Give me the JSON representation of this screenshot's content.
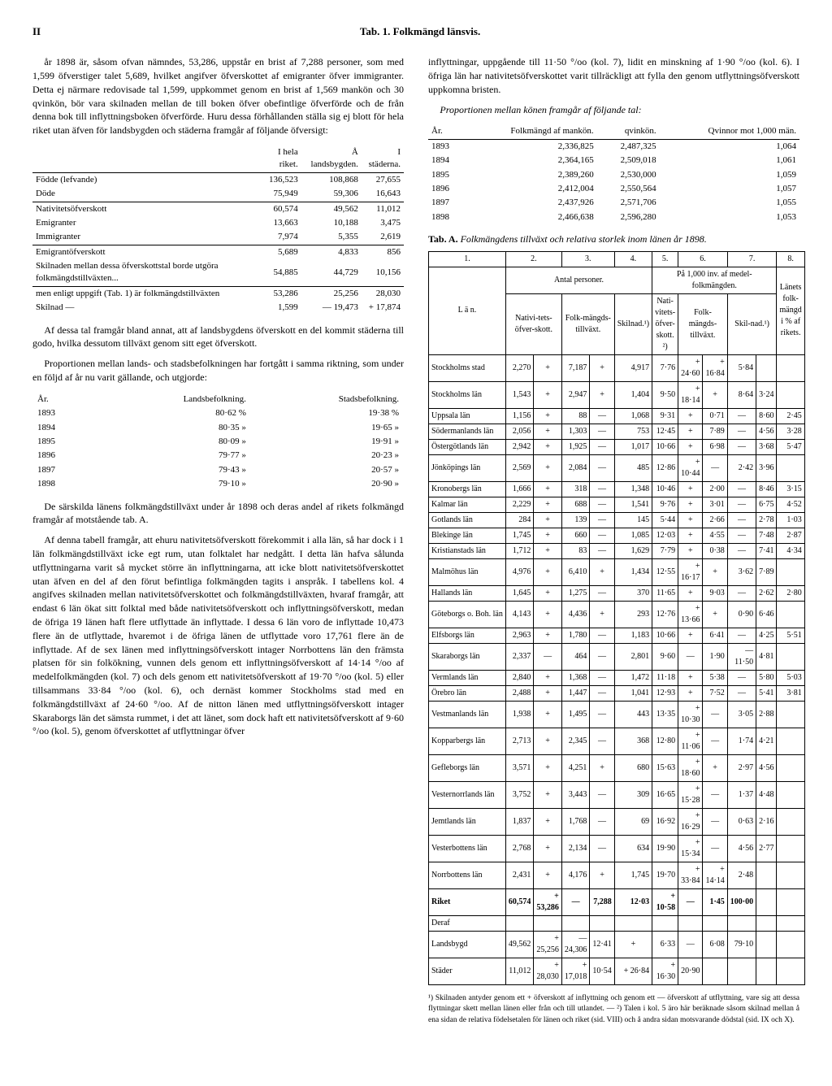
{
  "header": {
    "pageNum": "II",
    "title": "Tab. 1. Folkmängd länsvis."
  },
  "left": {
    "p1": "år 1898 är, såsom ofvan nämndes, 53,286, uppstår en brist af 7,288 personer, som med 1,599 öfverstiger talet 5,689, hvilket angifver öfverskottet af emigranter öfver immigranter. Detta ej närmare redovisade tal 1,599, uppkommet genom en brist af 1,569 mankön och 30 qvinkön, bör vara skilnaden mellan de till boken öfver obefintlige öfverförde och de från denna bok till inflyttningsboken öfverförde. Huru dessa förhållanden ställa sig ej blott för hela riket utan äfven för landsbygden och städerna framgår af följande öfversigt:",
    "overviewHeaders": [
      "",
      "I hela riket.",
      "Å landsbygden.",
      "I städerna."
    ],
    "overview": [
      [
        "Födde (lefvande)",
        "136,523",
        "108,868",
        "27,655"
      ],
      [
        "Döde",
        "75,949",
        "59,306",
        "16,643"
      ],
      [
        "Nativitetsöfverskott",
        "60,574",
        "49,562",
        "11,012"
      ],
      [
        "Emigranter",
        "13,663",
        "10,188",
        "3,475"
      ],
      [
        "Immigranter",
        "7,974",
        "5,355",
        "2,619"
      ],
      [
        "Emigrantöfverskott",
        "5,689",
        "4,833",
        "856"
      ],
      [
        "Skilnaden mellan dessa öfverskottstal borde utgöra folkmängdstillväxten...",
        "54,885",
        "44,729",
        "10,156"
      ],
      [
        "men enligt uppgift (Tab. 1) är folkmängdstillväxten",
        "53,286",
        "25,256",
        "28,030"
      ],
      [
        "Skilnad —",
        "1,599",
        "— 19,473",
        "+ 17,874"
      ]
    ],
    "p2": "Af dessa tal framgår bland annat, att af landsbygdens öfverskott en del kommit städerna till godo, hvilka dessutom tillväxt genom sitt eget öfverskott.",
    "p3": "Proportionen mellan lands- och stadsbefolkningen har fortgått i samma riktning, som under en följd af år nu varit gällande, och utgjorde:",
    "propHeaders": [
      "År.",
      "Landsbefolkning.",
      "Stadsbefolkning."
    ],
    "prop": [
      [
        "1893",
        "80·62 %",
        "19·38 %"
      ],
      [
        "1894",
        "80·35 »",
        "19·65 »"
      ],
      [
        "1895",
        "80·09 »",
        "19·91 »"
      ],
      [
        "1896",
        "79·77 »",
        "20·23 »"
      ],
      [
        "1897",
        "79·43 »",
        "20·57 »"
      ],
      [
        "1898",
        "79·10 »",
        "20·90 »"
      ]
    ],
    "p4": "De särskilda länens folkmängdstillväxt under år 1898 och deras andel af rikets folkmängd framgår af motstående tab. A.",
    "p5": "Af denna tabell framgår, att ehuru nativitetsöfverskott förekommit i alla län, så har dock i 1 län folkmängdstillväxt icke egt rum, utan folktalet har nedgått. I detta län hafva sålunda utflyttningarna varit så mycket större än inflyttningarna, att icke blott nativitetsöfverskottet utan äfven en del af den förut befintliga folkmängden tagits i anspråk. I tabellens kol. 4 angifves skilnaden mellan nativitetsöfverskottet och folkmängdstillväxten, hvaraf framgår, att endast 6 län ökat sitt folktal med både nativitetsöfverskott och inflyttningsöfverskott, medan de öfriga 19 länen haft flere utflyttade än inflyttade. I dessa 6 län voro de inflyttade 10,473 flere än de utflyttade, hvaremot i de öfriga länen de utflyttade voro 17,761 flere än de inflyttade. Af de sex länen med inflyttningsöfverskott intager Norrbottens län den främsta platsen för sin folkökning, vunnen dels genom ett inflyttningsöfverskott af 14·14 °/oo af medelfolkmängden (kol. 7) och dels genom ett nativitetsöfverskott af 19·70 °/oo (kol. 5) eller tillsammans 33·84 °/oo (kol. 6), och dernäst kommer Stockholms stad med en folkmängdstillväxt af 24·60 °/oo. Af de nitton länen med utflyttningsöfverskott intager Skaraborgs län det sämsta rummet, i det att länet, som dock haft ett nativitetsöfverskott af 9·60 °/oo (kol. 5), genom öfverskottet af utflyttningar öfver"
  },
  "right": {
    "p1": "inflyttningar, uppgående till 11·50 °/oo (kol. 7), lidit en minskning af 1·90 °/oo (kol. 6). I öfriga län har nativitetsöfverskottet varit tillräckligt att fylla den genom utflyttningsöfverskott uppkomna bristen.",
    "p2": "Proportionen mellan könen framgår af följande tal:",
    "sexHeaders": [
      "År.",
      "Folkmängd af mankön.",
      "qvinkön.",
      "Qvinnor mot 1,000 män."
    ],
    "sex": [
      [
        "1893",
        "2,336,825",
        "2,487,325",
        "1,064"
      ],
      [
        "1894",
        "2,364,165",
        "2,509,018",
        "1,061"
      ],
      [
        "1895",
        "2,389,260",
        "2,530,000",
        "1,059"
      ],
      [
        "1896",
        "2,412,004",
        "2,550,564",
        "1,057"
      ],
      [
        "1897",
        "2,437,926",
        "2,571,706",
        "1,055"
      ],
      [
        "1898",
        "2,466,638",
        "2,596,280",
        "1,053"
      ]
    ],
    "tabALabel": "Tab. A.",
    "tabACaption": "Folkmängdens tillväxt och relativa storlek inom länen år 1898.",
    "tabAHead": {
      "cols": [
        "1.",
        "2.",
        "3.",
        "4.",
        "5.",
        "6.",
        "7.",
        "8."
      ],
      "group1": "Antal personer.",
      "group2": "På 1,000 inv. af medel-folkmängden.",
      "group3": "Länets folk-mängd i % af rikets.",
      "lan": "L ä n.",
      "c2": "Nativi-tets-öfver-skott.",
      "c3": "Folk-mängds-tillväxt.",
      "c4": "Skilnad.¹)",
      "c5": "Nati-vitets-öfver-skott. ²)",
      "c6": "Folk-mängds-tillväxt.",
      "c7": "Skil-nad.¹)"
    },
    "tabARows": [
      [
        "Stockholms stad",
        "2,270",
        "+",
        "7,187",
        "+",
        "4,917",
        "7·76",
        "+ 24·60",
        "+ 16·84",
        "5·84"
      ],
      [
        "Stockholms län",
        "1,543",
        "+",
        "2,947",
        "+",
        "1,404",
        "9·50",
        "+ 18·14",
        "+",
        "8·64",
        "3·24"
      ],
      [
        "Uppsala län",
        "1,156",
        "+",
        "88",
        "—",
        "1,068",
        "9·31",
        "+",
        "0·71",
        "—",
        "8·60",
        "2·45"
      ],
      [
        "Södermanlands län",
        "2,056",
        "+",
        "1,303",
        "—",
        "753",
        "12·45",
        "+",
        "7·89",
        "—",
        "4·56",
        "3·28"
      ],
      [
        "Östergötlands län",
        "2,942",
        "+",
        "1,925",
        "—",
        "1,017",
        "10·66",
        "+",
        "6·98",
        "—",
        "3·68",
        "5·47"
      ],
      [
        "Jönköpings län",
        "2,569",
        "+",
        "2,084",
        "—",
        "485",
        "12·86",
        "+ 10·44",
        "—",
        "2·42",
        "3·96"
      ],
      [
        "Kronobergs län",
        "1,666",
        "+",
        "318",
        "—",
        "1,348",
        "10·46",
        "+",
        "2·00",
        "—",
        "8·46",
        "3·15"
      ],
      [
        "Kalmar län",
        "2,229",
        "+",
        "688",
        "—",
        "1,541",
        "9·76",
        "+",
        "3·01",
        "—",
        "6·75",
        "4·52"
      ],
      [
        "Gotlands län",
        "284",
        "+",
        "139",
        "—",
        "145",
        "5·44",
        "+",
        "2·66",
        "—",
        "2·78",
        "1·03"
      ],
      [
        "Blekinge län",
        "1,745",
        "+",
        "660",
        "—",
        "1,085",
        "12·03",
        "+",
        "4·55",
        "—",
        "7·48",
        "2·87"
      ],
      [
        "Kristianstads län",
        "1,712",
        "+",
        "83",
        "—",
        "1,629",
        "7·79",
        "+",
        "0·38",
        "—",
        "7·41",
        "4·34"
      ],
      [
        "Malmöhus län",
        "4,976",
        "+",
        "6,410",
        "+",
        "1,434",
        "12·55",
        "+ 16·17",
        "+",
        "3·62",
        "7·89"
      ],
      [
        "Hallands län",
        "1,645",
        "+",
        "1,275",
        "—",
        "370",
        "11·65",
        "+",
        "9·03",
        "—",
        "2·62",
        "2·80"
      ],
      [
        "Göteborgs o. Boh. län",
        "4,143",
        "+",
        "4,436",
        "+",
        "293",
        "12·76",
        "+ 13·66",
        "+",
        "0·90",
        "6·46"
      ],
      [
        "Elfsborgs län",
        "2,963",
        "+",
        "1,780",
        "—",
        "1,183",
        "10·66",
        "+",
        "6·41",
        "—",
        "4·25",
        "5·51"
      ],
      [
        "Skaraborgs län",
        "2,337",
        "—",
        "464",
        "—",
        "2,801",
        "9·60",
        "—",
        "1·90",
        "—11·50",
        "4·81"
      ],
      [
        "Vermlands län",
        "2,840",
        "+",
        "1,368",
        "—",
        "1,472",
        "11·18",
        "+",
        "5·38",
        "—",
        "5·80",
        "5·03"
      ],
      [
        "Örebro län",
        "2,488",
        "+",
        "1,447",
        "—",
        "1,041",
        "12·93",
        "+",
        "7·52",
        "—",
        "5·41",
        "3·81"
      ],
      [
        "Vestmanlands län",
        "1,938",
        "+",
        "1,495",
        "—",
        "443",
        "13·35",
        "+ 10·30",
        "—",
        "3·05",
        "2·88"
      ],
      [
        "Kopparbergs län",
        "2,713",
        "+",
        "2,345",
        "—",
        "368",
        "12·80",
        "+ 11·06",
        "—",
        "1·74",
        "4·21"
      ],
      [
        "Gefleborgs län",
        "3,571",
        "+",
        "4,251",
        "+",
        "680",
        "15·63",
        "+ 18·60",
        "+",
        "2·97",
        "4·56"
      ],
      [
        "Vesternorrlands län",
        "3,752",
        "+",
        "3,443",
        "—",
        "309",
        "16·65",
        "+ 15·28",
        "—",
        "1·37",
        "4·48"
      ],
      [
        "Jemtlands län",
        "1,837",
        "+",
        "1,768",
        "—",
        "69",
        "16·92",
        "+ 16·29",
        "—",
        "0·63",
        "2·16"
      ],
      [
        "Vesterbottens län",
        "2,768",
        "+",
        "2,134",
        "—",
        "634",
        "19·90",
        "+ 15·34",
        "—",
        "4·56",
        "2·77"
      ],
      [
        "Norrbottens län",
        "2,431",
        "+",
        "4,176",
        "+",
        "1,745",
        "19·70",
        "+ 33·84",
        "+ 14·14",
        "2·48"
      ]
    ],
    "tabATotals": [
      [
        "Riket",
        "60,574",
        "+ 53,286",
        "—",
        "7,288",
        "12·03",
        "+ 10·58",
        "—",
        "1·45",
        "100·00"
      ],
      [
        "Deraf",
        "",
        "",
        "",
        "",
        "",
        "",
        "",
        "",
        ""
      ],
      [
        "Landsbygd",
        "49,562",
        "+ 25,256",
        "—24,306",
        "12·41",
        "+",
        "6·33",
        "—",
        "6·08",
        "79·10"
      ],
      [
        "Städer",
        "11,012",
        "+ 28,030",
        "+ 17,018",
        "10·54",
        "+ 26·84",
        "+ 16·30",
        "20·90"
      ]
    ],
    "footnote": "¹) Skilnaden antyder genom ett + öfverskott af inflyttning och genom ett — öfverskott af utflyttning, vare sig att dessa flyttningar skett mellan länen eller från och till utlandet. — ²) Talen i kol. 5 äro här beräknade såsom skilnad mellan å ena sidan de relativa födelsetalen för länen och riket (sid. VIII) och å andra sidan motsvarande dödstal (sid. IX och X)."
  }
}
